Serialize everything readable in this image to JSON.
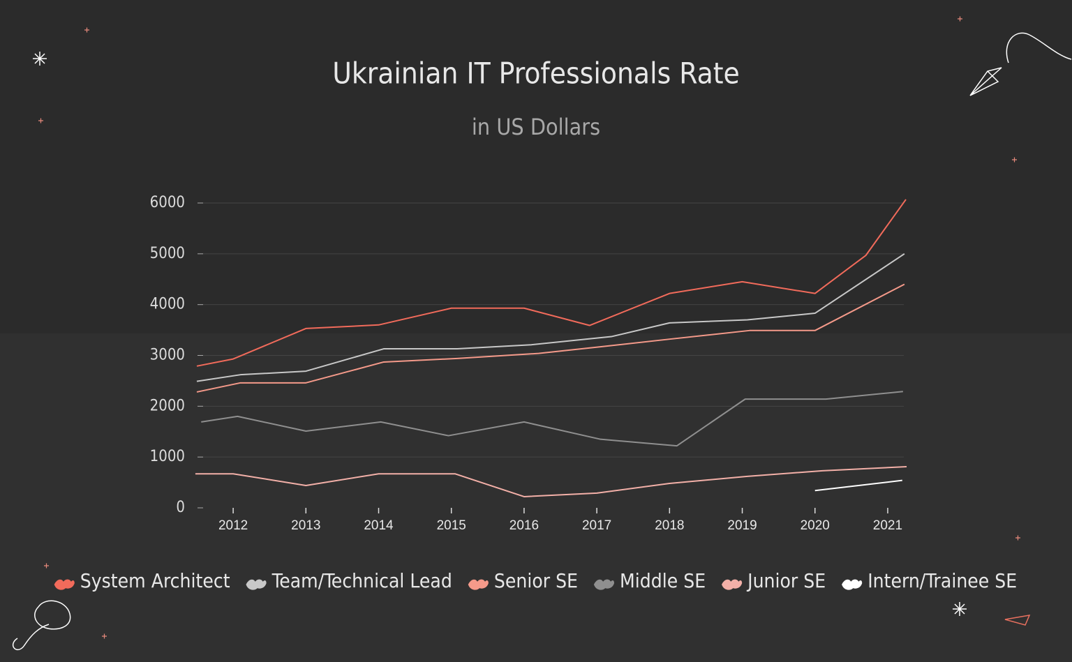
{
  "chart_data": {
    "type": "line",
    "title": "Ukrainian IT Professionals Rate",
    "subtitle": "in US Dollars",
    "xlim": [
      2011.5,
      2021.25
    ],
    "xticks": [
      2012,
      2013,
      2014,
      2015,
      2016,
      2017,
      2018,
      2019,
      2020,
      2021
    ],
    "ylim": [
      0,
      6000
    ],
    "yticks": [
      0,
      1000,
      2000,
      3000,
      4000,
      5000,
      6000
    ],
    "grid": true,
    "legend": "bottom",
    "series": [
      {
        "name": "System Architect",
        "color": "#f26b5b",
        "x": [
          2011.5,
          2012,
          2013,
          2014,
          2015,
          2016,
          2016.9,
          2018,
          2019,
          2020,
          2020.7,
          2021.25
        ],
        "values": [
          2790,
          2930,
          3530,
          3600,
          3930,
          3930,
          3590,
          4220,
          4450,
          4220,
          4970,
          6070
        ]
      },
      {
        "name": "Team/Technical Lead",
        "color": "#c8c8c8",
        "x": [
          2011.5,
          2012.1,
          2013,
          2014.07,
          2015.08,
          2016.1,
          2017.2,
          2018,
          2019.07,
          2020,
          2021.23
        ],
        "values": [
          2490,
          2620,
          2690,
          3130,
          3130,
          3210,
          3370,
          3640,
          3700,
          3830,
          5000
        ]
      },
      {
        "name": "Senior SE",
        "color": "#f59a8a",
        "x": [
          2011.5,
          2012.1,
          2013,
          2014.07,
          2015.08,
          2016.2,
          2017.05,
          2018,
          2019.1,
          2020,
          2021.23
        ],
        "values": [
          2280,
          2460,
          2460,
          2870,
          2940,
          3040,
          3170,
          3320,
          3490,
          3490,
          4400
        ]
      },
      {
        "name": "Middle SE",
        "color": "#8f8f8f",
        "x": [
          2011.56,
          2012.06,
          2013,
          2014.03,
          2014.96,
          2016,
          2017.05,
          2018.1,
          2019.04,
          2020.15,
          2021.21
        ],
        "values": [
          1690,
          1800,
          1510,
          1690,
          1420,
          1690,
          1350,
          1220,
          2140,
          2140,
          2290
        ]
      },
      {
        "name": "Junior SE",
        "color": "#f3b0a8",
        "x": [
          2011.48,
          2012,
          2013,
          2014,
          2015.05,
          2016,
          2017,
          2018,
          2019.07,
          2020.1,
          2021.26
        ],
        "values": [
          670,
          670,
          440,
          670,
          670,
          220,
          290,
          480,
          620,
          730,
          810
        ]
      },
      {
        "name": "Intern/Trainee SE",
        "color": "#ffffff",
        "x": [
          2020,
          2021.2
        ],
        "values": [
          340,
          540
        ]
      }
    ]
  }
}
